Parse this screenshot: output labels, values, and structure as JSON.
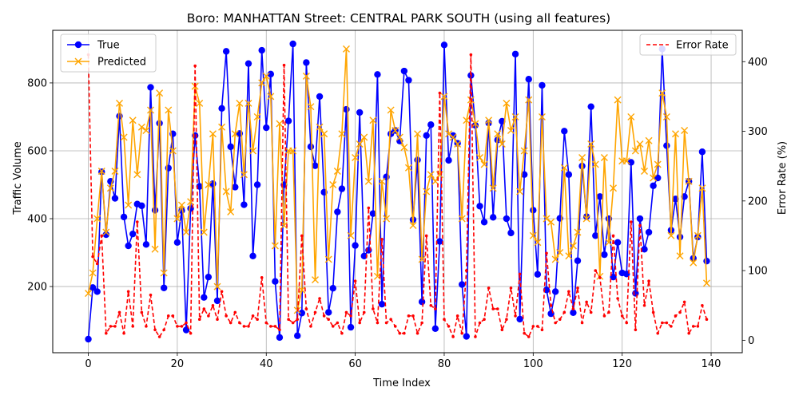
{
  "chart_data": {
    "type": "line",
    "title": "Boro: MANHATTAN Street: CENTRAL PARK SOUTH (using all features)",
    "xlabel": "Time Index",
    "ylabel_left": "Traffic Volume",
    "ylabel_right": "Error Rate (%)",
    "xlim": [
      -8,
      147
    ],
    "ylim_left": [
      5,
      955
    ],
    "ylim_right": [
      -17.9,
      445
    ],
    "xticks": [
      0,
      20,
      40,
      60,
      80,
      100,
      120,
      140
    ],
    "yticks_left": [
      200,
      400,
      600,
      800
    ],
    "yticks_right": [
      0,
      100,
      200,
      300,
      400
    ],
    "grid": true,
    "legend_left": "top-left",
    "legend_right": "top-right",
    "series": [
      {
        "name": "True",
        "axis": "left",
        "color": "#0000ff",
        "marker": "circle",
        "values": [
          45,
          197,
          185,
          538,
          353,
          510,
          460,
          702,
          405,
          320,
          355,
          443,
          438,
          324,
          787,
          425,
          681,
          196,
          549,
          650,
          330,
          424,
          72,
          430,
          645,
          495,
          168,
          228,
          503,
          158,
          725,
          893,
          612,
          493,
          651,
          441,
          857,
          290,
          500,
          896,
          668,
          826,
          215,
          50,
          500,
          688,
          915,
          55,
          122,
          860,
          612,
          556,
          760,
          478,
          124,
          195,
          420,
          488,
          722,
          80,
          321,
          713,
          290,
          307,
          415,
          825,
          148,
          523,
          650,
          660,
          629,
          835,
          808,
          397,
          573,
          155,
          645,
          677,
          76,
          333,
          912,
          572,
          645,
          622,
          206,
          53,
          822,
          675,
          437,
          390,
          682,
          404,
          632,
          687,
          400,
          358,
          885,
          104,
          530,
          811,
          425,
          236,
          793,
          190,
          120,
          185,
          401,
          658,
          530,
          123,
          276,
          555,
          406,
          730,
          350,
          465,
          294,
          400,
          228,
          330,
          240,
          237,
          566,
          180,
          400,
          310,
          360,
          497,
          520,
          900,
          615,
          366,
          458,
          346,
          465,
          510,
          283,
          346,
          597,
          275
        ]
      },
      {
        "name": "Predicted",
        "axis": "left",
        "color": "#ffa500",
        "marker": "x",
        "values": [
          180,
          240,
          400,
          540,
          360,
          490,
          540,
          740,
          640,
          440,
          690,
          530,
          670,
          660,
          720,
          310,
          770,
          240,
          720,
          600,
          400,
          440,
          360,
          450,
          790,
          740,
          360,
          500,
          650,
          200,
          670,
          480,
          420,
          650,
          740,
          530,
          740,
          600,
          700,
          800,
          820,
          760,
          320,
          680,
          380,
          600,
          600,
          130,
          190,
          820,
          730,
          220,
          670,
          650,
          280,
          500,
          540,
          650,
          900,
          350,
          580,
          620,
          640,
          510,
          690,
          230,
          510,
          400,
          720,
          660,
          640,
          610,
          550,
          380,
          650,
          280,
          480,
          530,
          510,
          530,
          760,
          650,
          640,
          620,
          400,
          690,
          750,
          680,
          580,
          560,
          690,
          490,
          650,
          620,
          740,
          660,
          700,
          480,
          600,
          750,
          350,
          330,
          700,
          400,
          390,
          280,
          300,
          550,
          290,
          320,
          360,
          580,
          400,
          620,
          560,
          230,
          580,
          330,
          490,
          750,
          570,
          570,
          700,
          600,
          620,
          540,
          630,
          520,
          560,
          770,
          700,
          350,
          650,
          290,
          660,
          510,
          270,
          350,
          490,
          210
        ]
      },
      {
        "name": "Error Rate",
        "axis": "right",
        "color": "#ff0000",
        "marker": "none",
        "dashed": true,
        "values": [
          410,
          120,
          110,
          150,
          10,
          20,
          20,
          40,
          10,
          70,
          20,
          170,
          40,
          20,
          65,
          15,
          5,
          15,
          35,
          35,
          20,
          20,
          25,
          10,
          394,
          30,
          45,
          35,
          50,
          30,
          70,
          35,
          25,
          40,
          25,
          20,
          20,
          35,
          30,
          90,
          25,
          20,
          20,
          15,
          395,
          30,
          25,
          30,
          150,
          45,
          20,
          40,
          60,
          35,
          30,
          20,
          25,
          10,
          40,
          35,
          85,
          25,
          40,
          190,
          45,
          25,
          145,
          25,
          30,
          20,
          10,
          10,
          35,
          35,
          10,
          25,
          150,
          50,
          45,
          355,
          30,
          20,
          5,
          35,
          10,
          100,
          410,
          5,
          25,
          30,
          75,
          45,
          45,
          15,
          30,
          75,
          35,
          95,
          10,
          5,
          20,
          20,
          15,
          125,
          50,
          25,
          30,
          40,
          70,
          45,
          75,
          25,
          55,
          40,
          100,
          90,
          35,
          40,
          150,
          60,
          35,
          25,
          170,
          15,
          165,
          50,
          85,
          40,
          10,
          25,
          25,
          20,
          35,
          40,
          55,
          10,
          20,
          20,
          50,
          30
        ]
      }
    ]
  }
}
